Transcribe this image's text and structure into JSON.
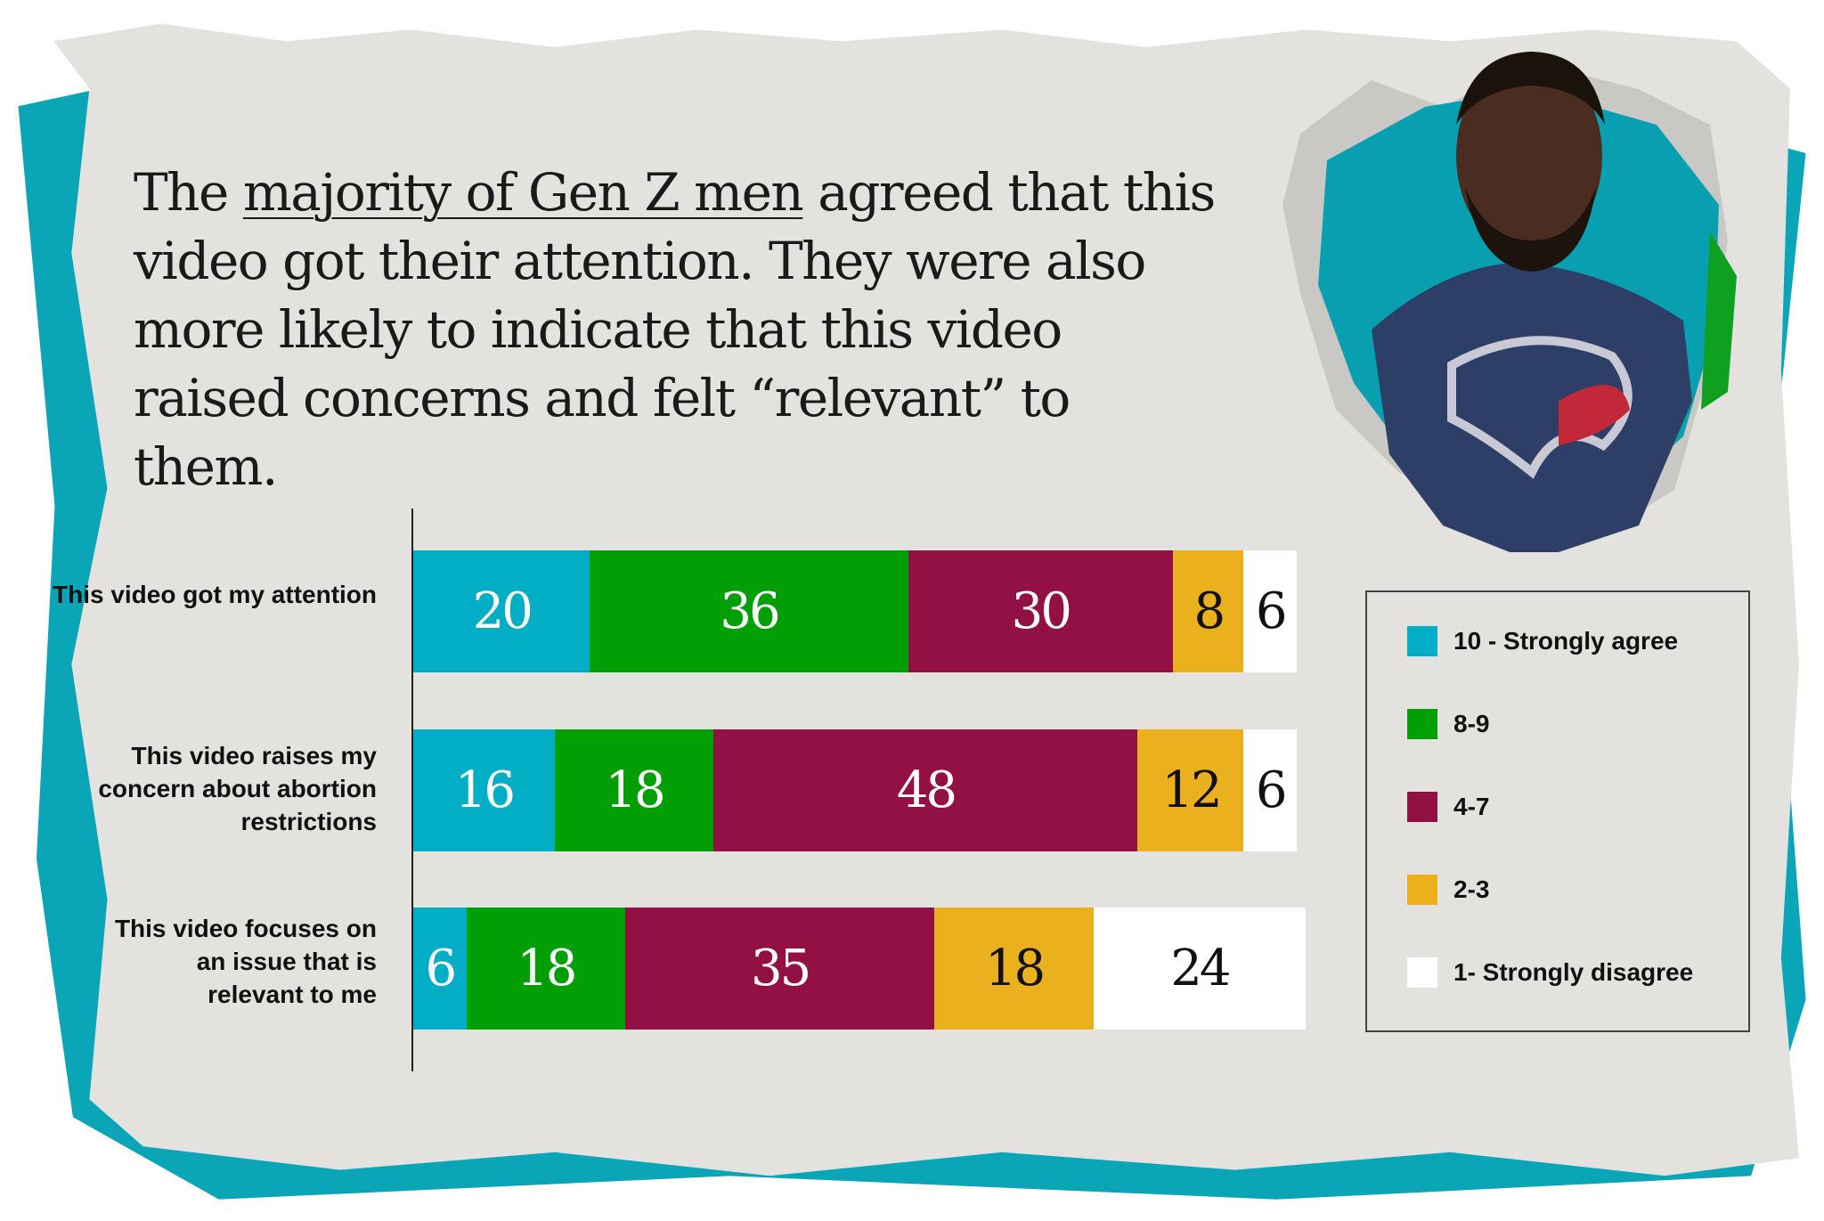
{
  "title": {
    "pre": "The ",
    "underlined": "majority of Gen Z men",
    "post": " agreed that this video got their attention. They were also more likely to indicate that this video raised concerns and felt “relevant” to them."
  },
  "chart_data": {
    "type": "bar",
    "orientation": "horizontal",
    "stacked": true,
    "categories": [
      "This video got my attention",
      "This video raises my concern about abortion restrictions",
      "This video focuses on an issue that is relevant to me"
    ],
    "series": [
      {
        "name": "10 - Strongly agree",
        "color": "#02adc6",
        "label_color": "#ffffff",
        "values": [
          20,
          16,
          6
        ]
      },
      {
        "name": "8-9",
        "color": "#019f05",
        "label_color": "#ffffff",
        "values": [
          36,
          18,
          18
        ]
      },
      {
        "name": "4-7",
        "color": "#931044",
        "label_color": "#ffffff",
        "values": [
          30,
          48,
          35
        ]
      },
      {
        "name": "2-3",
        "color": "#ebb01e",
        "label_color": "#111111",
        "values": [
          8,
          12,
          18
        ]
      },
      {
        "name": "1- Strongly disagree",
        "color": "#ffffff",
        "label_color": "#111111",
        "values": [
          6,
          6,
          24
        ]
      }
    ],
    "xlim": [
      0,
      100
    ],
    "legend_position": "right",
    "grid": false
  }
}
